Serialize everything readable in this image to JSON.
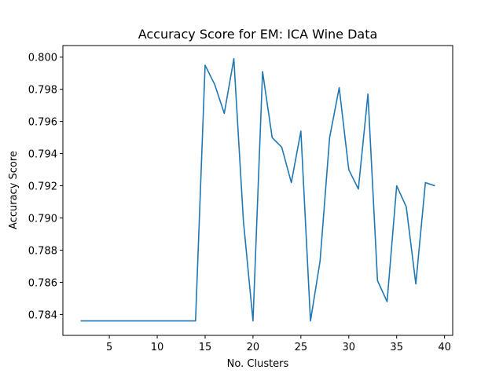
{
  "chart_data": {
    "type": "line",
    "title": "Accuracy Score for EM: ICA Wine Data",
    "xlabel": "No. Clusters",
    "ylabel": "Accuracy Score",
    "xlim": [
      0.15,
      40.85
    ],
    "ylim": [
      0.7827,
      0.80072
    ],
    "xticks": [
      5,
      10,
      15,
      20,
      25,
      30,
      35,
      40
    ],
    "yticks": [
      0.784,
      0.786,
      0.788,
      0.79,
      0.792,
      0.794,
      0.796,
      0.798,
      0.8
    ],
    "ytick_labels": [
      "0.784",
      "0.786",
      "0.788",
      "0.790",
      "0.792",
      "0.794",
      "0.796",
      "0.798",
      "0.800"
    ],
    "grid": false,
    "series": [
      {
        "color": "#1f77b4",
        "x": [
          2,
          3,
          4,
          5,
          6,
          7,
          8,
          9,
          10,
          11,
          12,
          13,
          14,
          15,
          16,
          17,
          18,
          19,
          20,
          21,
          22,
          23,
          24,
          25,
          26,
          27,
          28,
          29,
          30,
          31,
          32,
          33,
          34,
          35,
          36,
          37,
          38,
          39
        ],
        "y": [
          0.7836,
          0.7836,
          0.7836,
          0.7836,
          0.7836,
          0.7836,
          0.7836,
          0.7836,
          0.7836,
          0.7836,
          0.7836,
          0.7836,
          0.7836,
          0.7995,
          0.7983,
          0.7965,
          0.7999,
          0.7898,
          0.7836,
          0.7991,
          0.795,
          0.7944,
          0.7922,
          0.7954,
          0.7836,
          0.7873,
          0.795,
          0.7981,
          0.793,
          0.7918,
          0.7977,
          0.7861,
          0.7848,
          0.792,
          0.7907,
          0.7859,
          0.7922,
          0.792
        ]
      }
    ]
  }
}
